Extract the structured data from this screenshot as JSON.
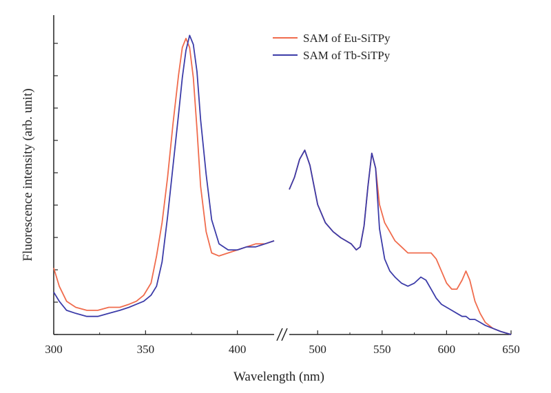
{
  "chart_data": {
    "type": "line",
    "title": "",
    "xlabel": "Wavelength (nm)",
    "ylabel": "Fluorescence intensity (arb. unit)",
    "x_axis": {
      "segments": [
        {
          "xlim": [
            300,
            420
          ],
          "ticks": [
            300,
            350,
            400
          ]
        },
        {
          "xlim": [
            478,
            650
          ],
          "ticks": [
            500,
            550,
            600,
            650
          ]
        }
      ],
      "break": "//"
    },
    "ylim": [
      0,
      1.0
    ],
    "grid": false,
    "legend": {
      "position": "top-right",
      "entries": [
        "SAM of Eu-SiTPy",
        "SAM of Tb-SiTPy"
      ]
    },
    "series": [
      {
        "name": "SAM of Eu-SiTPy",
        "color": "#f06b4c",
        "segments": [
          {
            "x": [
              300,
              303,
              307,
              312,
              318,
              324,
              330,
              336,
              341,
              345,
              349,
              353,
              356,
              359,
              362,
              365,
              368,
              370,
              372,
              374,
              376,
              378,
              380,
              383,
              386,
              390,
              395,
              400,
              405,
              410,
              415,
              420
            ],
            "y": [
              0.22,
              0.16,
              0.11,
              0.09,
              0.08,
              0.08,
              0.09,
              0.09,
              0.1,
              0.11,
              0.13,
              0.17,
              0.26,
              0.37,
              0.52,
              0.7,
              0.86,
              0.95,
              0.98,
              0.95,
              0.85,
              0.68,
              0.49,
              0.34,
              0.27,
              0.26,
              0.27,
              0.28,
              0.29,
              0.3,
              0.3,
              0.31
            ]
          },
          {
            "x": [
              478,
              482,
              486,
              490,
              494,
              500,
              506,
              512,
              518,
              522,
              526,
              530,
              533,
              536,
              539,
              542,
              545,
              548,
              552,
              556,
              560,
              565,
              570,
              575,
              580,
              584,
              588,
              592,
              596,
              600,
              604,
              608,
              612,
              615,
              618,
              622,
              626,
              630,
              636,
              642,
              650
            ],
            "y": [
              0.48,
              0.52,
              0.58,
              0.61,
              0.56,
              0.43,
              0.37,
              0.34,
              0.32,
              0.31,
              0.3,
              0.28,
              0.29,
              0.36,
              0.49,
              0.6,
              0.55,
              0.43,
              0.37,
              0.34,
              0.31,
              0.29,
              0.27,
              0.27,
              0.27,
              0.27,
              0.27,
              0.25,
              0.21,
              0.17,
              0.15,
              0.15,
              0.18,
              0.21,
              0.18,
              0.11,
              0.07,
              0.04,
              0.02,
              0.01,
              0.0
            ]
          }
        ]
      },
      {
        "name": "SAM of Tb-SiTPy",
        "color": "#3b3ba8",
        "segments": [
          {
            "x": [
              300,
              303,
              307,
              312,
              318,
              324,
              330,
              336,
              341,
              345,
              349,
              353,
              356,
              359,
              362,
              365,
              368,
              370,
              372,
              374,
              376,
              378,
              380,
              383,
              386,
              390,
              395,
              400,
              405,
              410,
              415,
              420
            ],
            "y": [
              0.14,
              0.11,
              0.08,
              0.07,
              0.06,
              0.06,
              0.07,
              0.08,
              0.09,
              0.1,
              0.11,
              0.13,
              0.16,
              0.24,
              0.39,
              0.56,
              0.73,
              0.85,
              0.94,
              0.99,
              0.96,
              0.87,
              0.71,
              0.53,
              0.38,
              0.3,
              0.28,
              0.28,
              0.29,
              0.29,
              0.3,
              0.31
            ]
          },
          {
            "x": [
              478,
              482,
              486,
              490,
              494,
              500,
              506,
              512,
              518,
              522,
              526,
              530,
              533,
              536,
              539,
              542,
              545,
              548,
              552,
              556,
              560,
              565,
              570,
              575,
              580,
              584,
              588,
              592,
              596,
              600,
              604,
              608,
              612,
              615,
              618,
              622,
              626,
              630,
              636,
              642,
              650
            ],
            "y": [
              0.48,
              0.52,
              0.58,
              0.61,
              0.56,
              0.43,
              0.37,
              0.34,
              0.32,
              0.31,
              0.3,
              0.28,
              0.29,
              0.36,
              0.49,
              0.6,
              0.55,
              0.35,
              0.25,
              0.21,
              0.19,
              0.17,
              0.16,
              0.17,
              0.19,
              0.18,
              0.15,
              0.12,
              0.1,
              0.09,
              0.08,
              0.07,
              0.06,
              0.06,
              0.05,
              0.05,
              0.04,
              0.03,
              0.02,
              0.01,
              0.0
            ]
          }
        ]
      }
    ]
  }
}
